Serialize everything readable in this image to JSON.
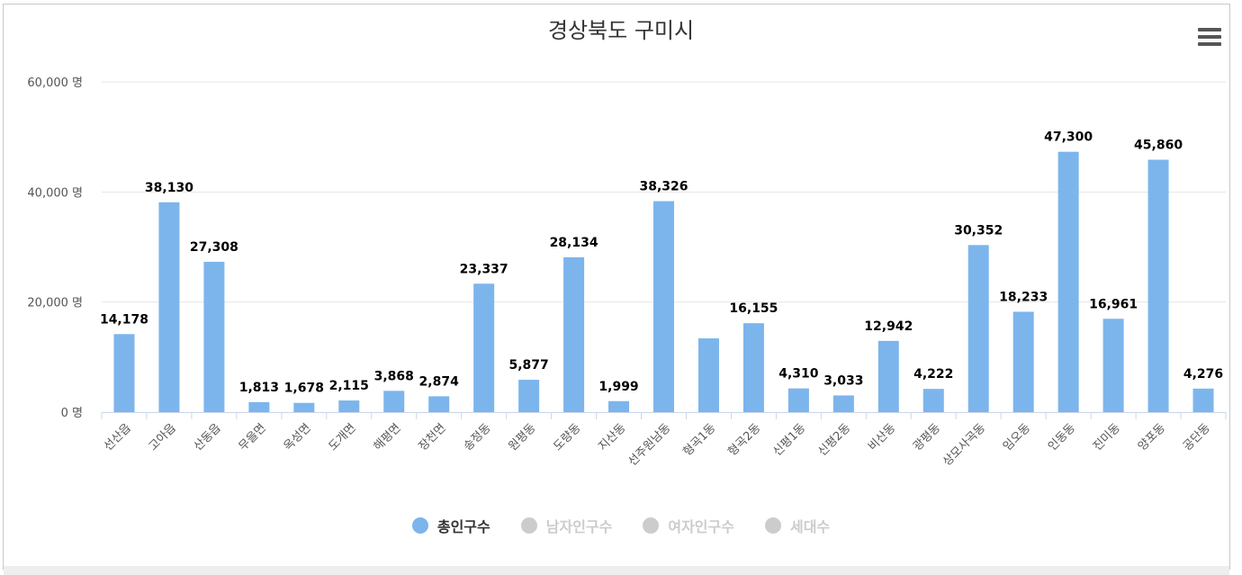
{
  "title": "경상북도 구미시",
  "chart_data": {
    "type": "bar",
    "title": "경상북도 구미시",
    "categories": [
      "선산읍",
      "고아읍",
      "산동읍",
      "무을면",
      "옥성면",
      "도개면",
      "해평면",
      "장천면",
      "송정동",
      "원평동",
      "도량동",
      "지산동",
      "선주원남동",
      "형곡1동",
      "형곡2동",
      "신평1동",
      "신평2동",
      "비산동",
      "광평동",
      "상모사곡동",
      "임오동",
      "인동동",
      "진미동",
      "양포동",
      "공단동"
    ],
    "series": [
      {
        "name": "총인구수",
        "color": "#7cb5ec",
        "values": [
          14178,
          38130,
          27308,
          1813,
          1678,
          2115,
          3868,
          2874,
          23337,
          5877,
          28134,
          1999,
          38326,
          13400,
          16155,
          4310,
          3033,
          12942,
          4222,
          30352,
          18233,
          47300,
          16961,
          45860,
          4276
        ],
        "labels": [
          "14,178",
          "38,130",
          "27,308",
          "1,813",
          "1,678",
          "2,115",
          "3,868",
          "2,874",
          "23,337",
          "5,877",
          "28,134",
          "1,999",
          "38,326",
          "",
          "16,155",
          "4,310",
          "3,033",
          "12,942",
          "4,222",
          "30,352",
          "18,233",
          "47,300",
          "16,961",
          "45,860",
          "4,276"
        ]
      }
    ],
    "yaxis": {
      "min": 0,
      "max": 60000,
      "ticks": [
        0,
        20000,
        40000,
        60000
      ],
      "tick_labels": [
        "0 명",
        "20,000 명",
        "40,000 명",
        "60,000 명"
      ]
    },
    "grid": true,
    "legend_position": "bottom-center"
  },
  "legend": {
    "items": [
      {
        "label": "총인구수",
        "color": "#7cb5ec",
        "active": true
      },
      {
        "label": "남자인구수",
        "color": "#cccccc",
        "active": false
      },
      {
        "label": "여자인구수",
        "color": "#cccccc",
        "active": false
      },
      {
        "label": "세대수",
        "color": "#cccccc",
        "active": false
      }
    ]
  },
  "menu": {
    "icon": "hamburger-menu-icon"
  }
}
